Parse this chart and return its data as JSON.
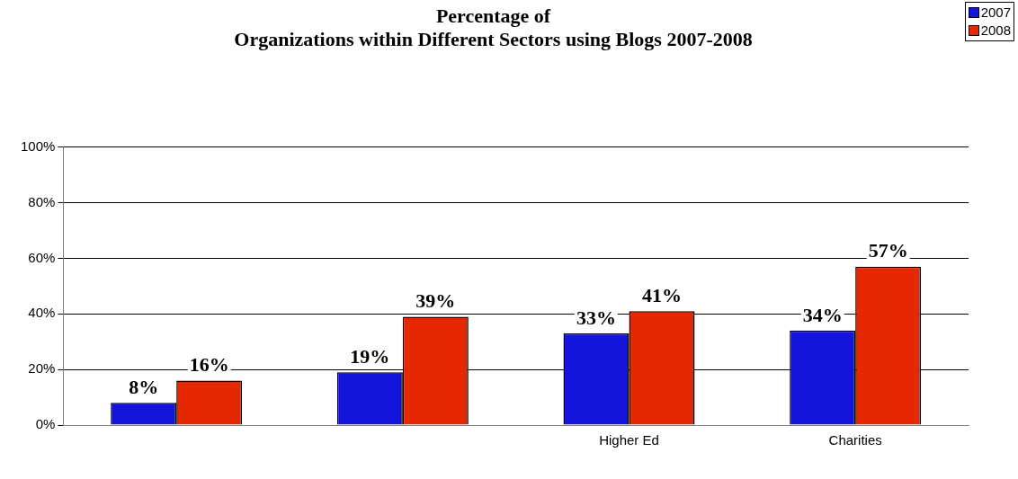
{
  "chart_data": {
    "type": "bar",
    "title": "Percentage of\nOrganizations within Different Sectors using Blogs 2007-2008",
    "categories": [
      null,
      null,
      "Higher Ed",
      "Charities"
    ],
    "series": [
      {
        "name": "2007",
        "color": "#1414dc",
        "values": [
          8,
          19,
          33,
          34
        ],
        "value_labels": [
          "8%",
          "19%",
          "33%",
          "34%"
        ]
      },
      {
        "name": "2008",
        "color": "#e62800",
        "values": [
          16,
          39,
          41,
          57
        ],
        "value_labels": [
          "16%",
          "39%",
          "41%",
          "57%"
        ]
      }
    ],
    "ylim": [
      0,
      100
    ],
    "yticks": [
      {
        "value": 0,
        "label": "0%"
      },
      {
        "value": 20,
        "label": "20%"
      },
      {
        "value": 40,
        "label": "40%"
      },
      {
        "value": 60,
        "label": "60%"
      },
      {
        "value": 80,
        "label": "80%"
      },
      {
        "value": 100,
        "label": "100%"
      }
    ],
    "grid": "y",
    "legend": "top right"
  }
}
